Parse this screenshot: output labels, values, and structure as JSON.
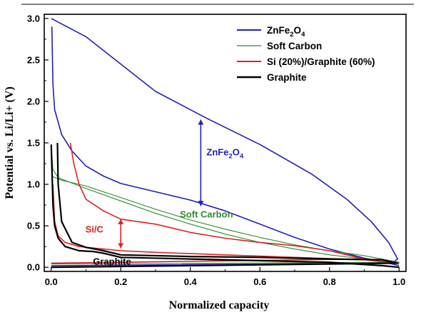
{
  "chart_data": {
    "type": "line",
    "xlabel": "Normalized capacity",
    "ylabel": "Potential vs. Li/Li+ (V)",
    "xlim": [
      -0.02,
      1.02
    ],
    "ylim": [
      -0.05,
      3.05
    ],
    "xticks": [
      0.0,
      0.2,
      0.4,
      0.6,
      0.8,
      1.0
    ],
    "xtick_labels": [
      "0.0",
      "0.2",
      "0.4",
      "0.6",
      "0.8",
      "1.0"
    ],
    "yticks": [
      0.0,
      0.5,
      1.0,
      1.5,
      2.0,
      2.5,
      3.0
    ],
    "ytick_labels": [
      "0.0",
      "0.5",
      "1.0",
      "1.5",
      "2.0",
      "2.5",
      "3.0"
    ],
    "grid": false,
    "legend_position": "top-right",
    "series": [
      {
        "name": "ZnFe2O4",
        "color": "#1f1fbf",
        "discharge": [
          [
            0.002,
            2.9
          ],
          [
            0.005,
            2.2
          ],
          [
            0.01,
            1.9
          ],
          [
            0.03,
            1.6
          ],
          [
            0.06,
            1.4
          ],
          [
            0.1,
            1.22
          ],
          [
            0.15,
            1.1
          ],
          [
            0.2,
            1.01
          ],
          [
            0.3,
            0.91
          ],
          [
            0.4,
            0.81
          ],
          [
            0.5,
            0.68
          ],
          [
            0.6,
            0.52
          ],
          [
            0.7,
            0.36
          ],
          [
            0.8,
            0.22
          ],
          [
            0.9,
            0.11
          ],
          [
            0.95,
            0.07
          ],
          [
            1.0,
            0.02
          ]
        ],
        "charge": [
          [
            0.0,
            0.02
          ],
          [
            0.98,
            0.05
          ],
          [
            0.996,
            0.1
          ],
          [
            0.97,
            0.3
          ],
          [
            0.92,
            0.55
          ],
          [
            0.85,
            0.82
          ],
          [
            0.75,
            1.12
          ],
          [
            0.6,
            1.48
          ],
          [
            0.45,
            1.79
          ],
          [
            0.3,
            2.12
          ],
          [
            0.2,
            2.45
          ],
          [
            0.1,
            2.78
          ],
          [
            0.0,
            3.0
          ]
        ]
      },
      {
        "name": "Soft Carbon",
        "color": "#2e8b2e",
        "discharge": [
          [
            0.0,
            1.45
          ],
          [
            0.005,
            1.18
          ],
          [
            0.02,
            1.08
          ],
          [
            0.1,
            0.95
          ],
          [
            0.2,
            0.8
          ],
          [
            0.3,
            0.65
          ],
          [
            0.4,
            0.52
          ],
          [
            0.5,
            0.4
          ],
          [
            0.6,
            0.3
          ],
          [
            0.7,
            0.22
          ],
          [
            0.8,
            0.15
          ],
          [
            0.9,
            0.1
          ],
          [
            1.0,
            0.04
          ]
        ],
        "charge": [
          [
            0.0,
            0.04
          ],
          [
            1.0,
            0.06
          ],
          [
            0.9,
            0.14
          ],
          [
            0.8,
            0.2
          ],
          [
            0.7,
            0.27
          ],
          [
            0.6,
            0.36
          ],
          [
            0.5,
            0.46
          ],
          [
            0.4,
            0.57
          ],
          [
            0.3,
            0.7
          ],
          [
            0.2,
            0.84
          ],
          [
            0.1,
            0.98
          ],
          [
            0.03,
            1.05
          ],
          [
            0.0,
            1.1
          ]
        ]
      },
      {
        "name": "Si (20%)/Graphite (60%)",
        "color": "#e02020",
        "discharge": [
          [
            0.005,
            1.0
          ],
          [
            0.01,
            0.55
          ],
          [
            0.02,
            0.38
          ],
          [
            0.04,
            0.3
          ],
          [
            0.08,
            0.25
          ],
          [
            0.15,
            0.22
          ],
          [
            0.2,
            0.2
          ],
          [
            0.3,
            0.18
          ],
          [
            0.5,
            0.15
          ],
          [
            0.7,
            0.12
          ],
          [
            0.9,
            0.09
          ],
          [
            1.0,
            0.05
          ]
        ],
        "charge": [
          [
            0.0,
            0.05
          ],
          [
            0.9,
            0.1
          ],
          [
            0.8,
            0.2
          ],
          [
            0.7,
            0.26
          ],
          [
            0.6,
            0.3
          ],
          [
            0.5,
            0.35
          ],
          [
            0.4,
            0.42
          ],
          [
            0.3,
            0.52
          ],
          [
            0.2,
            0.58
          ],
          [
            0.15,
            0.68
          ],
          [
            0.1,
            0.82
          ],
          [
            0.08,
            1.0
          ],
          [
            0.065,
            1.25
          ],
          [
            0.055,
            1.5
          ]
        ]
      },
      {
        "name": "Graphite",
        "color": "#000000",
        "discharge": [
          [
            0.0,
            1.48
          ],
          [
            0.005,
            0.75
          ],
          [
            0.01,
            0.5
          ],
          [
            0.02,
            0.35
          ],
          [
            0.04,
            0.25
          ],
          [
            0.08,
            0.2
          ],
          [
            0.12,
            0.19
          ],
          [
            0.15,
            0.17
          ],
          [
            0.2,
            0.12
          ],
          [
            0.4,
            0.1
          ],
          [
            0.6,
            0.08
          ],
          [
            0.8,
            0.06
          ],
          [
            0.95,
            0.02
          ],
          [
            1.0,
            0.0
          ]
        ],
        "charge": [
          [
            0.0,
            0.0
          ],
          [
            0.995,
            0.05
          ],
          [
            0.95,
            0.09
          ],
          [
            0.8,
            0.1
          ],
          [
            0.6,
            0.12
          ],
          [
            0.4,
            0.13
          ],
          [
            0.2,
            0.15
          ],
          [
            0.15,
            0.2
          ],
          [
            0.1,
            0.24
          ],
          [
            0.06,
            0.3
          ],
          [
            0.03,
            0.55
          ],
          [
            0.02,
            1.0
          ],
          [
            0.018,
            1.5
          ]
        ]
      }
    ],
    "legend": [
      "ZnFe2O4",
      "Soft Carbon",
      "Si (20%)/Graphite (60%)",
      "Graphite"
    ],
    "annotations": [
      {
        "text": "ZnFe2O4",
        "color": "#1f1fbf",
        "x": 0.43,
        "y": 1.35,
        "arrow": {
          "x": 0.43,
          "y1": 0.74,
          "y2": 1.78
        }
      },
      {
        "text": "Soft Carbon",
        "color": "#2e8b2e",
        "x": 0.37,
        "y": 0.6
      },
      {
        "text": "Si/C",
        "color": "#e02020",
        "x": 0.15,
        "y": 0.42,
        "arrow": {
          "x": 0.2,
          "y1": 0.23,
          "y2": 0.58
        }
      },
      {
        "text": "Graphite",
        "color": "#000000",
        "x": 0.12,
        "y": 0.03
      }
    ]
  }
}
